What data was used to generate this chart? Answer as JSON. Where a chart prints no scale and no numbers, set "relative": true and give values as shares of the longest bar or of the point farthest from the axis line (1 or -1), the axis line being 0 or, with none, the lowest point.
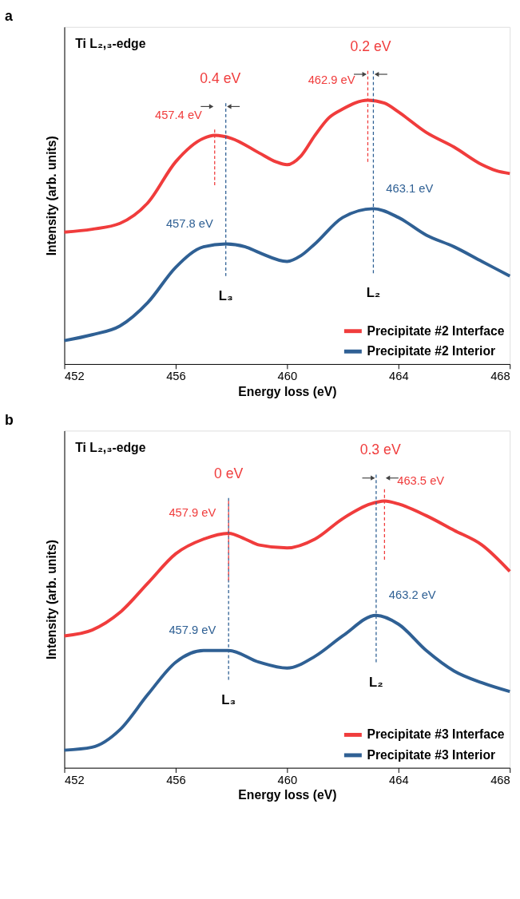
{
  "chart_data": [
    {
      "type": "line",
      "title": "a",
      "xlabel": "Energy loss (eV)",
      "ylabel": "Intensity (arb. units)",
      "relative": true,
      "xlim": [
        452,
        468
      ],
      "xticks": [
        452,
        456,
        460,
        464,
        468
      ],
      "legend": "bottom right",
      "grid": false,
      "series": [
        {
          "name": "Precipitate #2 Interface",
          "color": "#f03c3c",
          "x": [
            452,
            453,
            454,
            455,
            456,
            457,
            457.4,
            458,
            459,
            459.6,
            460,
            460.5,
            461,
            461.5,
            462,
            462.9,
            463.5,
            464,
            465,
            466,
            467,
            467.5,
            468
          ],
          "values": [
            0.45,
            0.46,
            0.48,
            0.55,
            0.69,
            0.77,
            0.78,
            0.77,
            0.72,
            0.69,
            0.68,
            0.71,
            0.78,
            0.84,
            0.87,
            0.9,
            0.89,
            0.86,
            0.79,
            0.74,
            0.68,
            0.66,
            0.65
          ]
        },
        {
          "name": "Precipitate #2 Interior",
          "color": "#2f6094",
          "x": [
            452,
            453,
            454,
            455,
            456,
            457,
            457.8,
            458.5,
            459,
            460,
            460.5,
            461,
            462,
            463.1,
            464,
            465,
            466,
            467,
            468
          ],
          "values": [
            0.08,
            0.1,
            0.13,
            0.21,
            0.33,
            0.4,
            0.41,
            0.4,
            0.38,
            0.35,
            0.37,
            0.41,
            0.5,
            0.53,
            0.5,
            0.44,
            0.4,
            0.35,
            0.3
          ]
        },
        {
          "name": "457.4 eV",
          "type": "line",
          "line_style": "dashed",
          "color": "#f03c3c",
          "x": [
            457.4,
            457.4
          ],
          "values": [
            0.8,
            0.61
          ]
        },
        {
          "name": "457.8 eV",
          "type": "line",
          "line_style": "dashed",
          "color": "#2f6094",
          "x": [
            457.8,
            457.8
          ],
          "values": [
            0.89,
            0.3
          ]
        },
        {
          "name": "462.9 eV",
          "type": "line",
          "line_style": "dashed",
          "color": "#f03c3c",
          "x": [
            462.9,
            462.9
          ],
          "values": [
            1.0,
            0.69
          ]
        },
        {
          "name": "463.1 eV",
          "type": "line",
          "line_style": "dashed",
          "color": "#2f6094",
          "x": [
            463.1,
            463.1
          ],
          "values": [
            1.0,
            0.31
          ]
        }
      ],
      "annotations": [
        "Ti L₂,₃-edge",
        "0.4 eV",
        "0.2 eV",
        "L₃",
        "L₂"
      ]
    },
    {
      "type": "line",
      "title": "b",
      "xlabel": "Energy loss (eV)",
      "ylabel": "Intensity (arb. units)",
      "relative": true,
      "xlim": [
        452,
        468
      ],
      "xticks": [
        452,
        456,
        460,
        464,
        468
      ],
      "legend": "bottom right",
      "grid": false,
      "series": [
        {
          "name": "Precipitate #3 Interface",
          "color": "#f03c3c",
          "x": [
            452,
            453,
            454,
            455,
            456,
            457,
            457.9,
            458.5,
            459,
            460,
            461,
            462,
            463,
            463.5,
            464,
            465,
            466,
            467,
            468
          ],
          "values": [
            0.45,
            0.47,
            0.53,
            0.63,
            0.73,
            0.78,
            0.8,
            0.78,
            0.76,
            0.75,
            0.78,
            0.85,
            0.9,
            0.91,
            0.9,
            0.86,
            0.81,
            0.76,
            0.67
          ]
        },
        {
          "name": "Precipitate #3 Interior",
          "color": "#2f6094",
          "x": [
            452,
            453,
            454,
            455,
            456,
            457,
            457.9,
            459,
            460,
            461,
            462,
            463.2,
            464,
            465,
            466,
            467,
            468
          ],
          "values": [
            0.06,
            0.07,
            0.13,
            0.25,
            0.36,
            0.4,
            0.4,
            0.36,
            0.34,
            0.38,
            0.45,
            0.52,
            0.49,
            0.4,
            0.33,
            0.29,
            0.26
          ]
        },
        {
          "name": "457.9 eV",
          "type": "line",
          "line_style": "dashed",
          "color": "#f03c3c",
          "x": [
            457.9,
            457.9
          ],
          "values": [
            0.91,
            0.64
          ]
        },
        {
          "name": "457.9 eV",
          "type": "line",
          "line_style": "dashed",
          "color": "#2f6094",
          "x": [
            457.9,
            457.9
          ],
          "values": [
            0.92,
            0.3
          ]
        },
        {
          "name": "463.5 eV",
          "type": "line",
          "line_style": "dashed",
          "color": "#f03c3c",
          "x": [
            463.5,
            463.5
          ],
          "values": [
            0.95,
            0.71
          ]
        },
        {
          "name": "463.2 eV",
          "type": "line",
          "line_style": "dashed",
          "color": "#2f6094",
          "x": [
            463.2,
            463.2
          ],
          "values": [
            1.0,
            0.36
          ]
        }
      ],
      "annotations": [
        "Ti L₂,₃-edge",
        "0 eV",
        "0.3 eV",
        "L₃",
        "L₂"
      ]
    }
  ]
}
